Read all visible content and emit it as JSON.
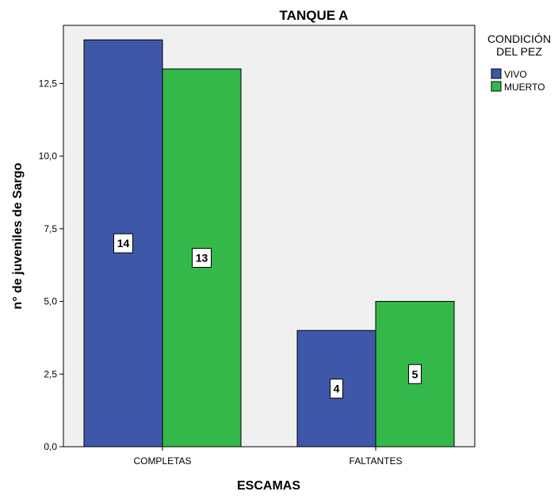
{
  "chart_data": {
    "type": "bar",
    "title": "TANQUE A",
    "xlabel": "ESCAMAS",
    "ylabel": "n° de juveniles de Sargo",
    "categories": [
      "COMPLETAS",
      "FALTANTES"
    ],
    "series": [
      {
        "name": "VIVO",
        "values": [
          14,
          4
        ],
        "color": "#3f57a8"
      },
      {
        "name": "MUERTO",
        "values": [
          13,
          5
        ],
        "color": "#34b84a"
      }
    ],
    "data_labels": [
      [
        "14",
        "4"
      ],
      [
        "13",
        "5"
      ]
    ],
    "ylim": [
      0,
      14.5
    ],
    "yticks": [
      0,
      2.5,
      5,
      7.5,
      10,
      12.5
    ],
    "ytick_labels": [
      "0,0",
      "2,5",
      "5,0",
      "7,5",
      "10,0",
      "12,5"
    ],
    "grid": false,
    "legend": {
      "title_lines": [
        "CONDICIÓN",
        "DEL PEZ"
      ],
      "position": "right"
    },
    "plot_background": "#f0f0f0"
  }
}
